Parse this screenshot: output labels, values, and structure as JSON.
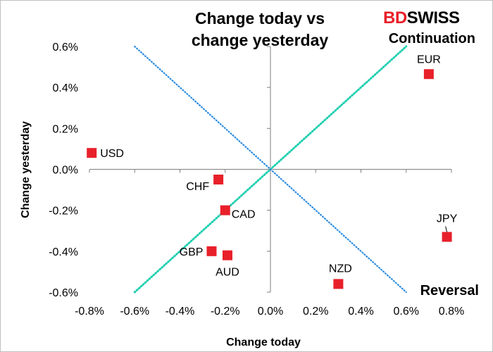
{
  "chart_data": {
    "type": "scatter",
    "title_line1": "Change today vs",
    "title_line2": "change yesterday",
    "xlabel": "Change today",
    "ylabel": "Change yesterday",
    "xlim": [
      -0.8,
      0.8
    ],
    "ylim": [
      -0.6,
      0.6
    ],
    "xticks": [
      -0.8,
      -0.6,
      -0.4,
      -0.2,
      0.0,
      0.2,
      0.4,
      0.6,
      0.8
    ],
    "xtick_labels": [
      "-0.8%",
      "-0.6%",
      "-0.4%",
      "-0.2%",
      "0.0%",
      "0.2%",
      "0.4%",
      "0.6%",
      "0.8%"
    ],
    "yticks": [
      0.6,
      0.4,
      0.2,
      0.0,
      -0.2,
      -0.4,
      -0.6
    ],
    "ytick_labels": [
      "0.6%",
      "0.4%",
      "0.2%",
      "0.0%",
      "-0.2%",
      "-0.4%",
      "-0.6%"
    ],
    "marker_color": "#e8202a",
    "continuation_color": "#1fcfb0",
    "reversal_color": "#2a8ae0",
    "continuation_label": "Continuation",
    "reversal_label": "Reversal",
    "continuation_line": [
      [
        -0.6,
        -0.6
      ],
      [
        0.6,
        0.6
      ]
    ],
    "reversal_line": [
      [
        -0.6,
        0.6
      ],
      [
        0.6,
        -0.6
      ]
    ],
    "points": [
      {
        "label": "USD",
        "x": -0.79,
        "y": 0.08
      },
      {
        "label": "EUR",
        "x": 0.7,
        "y": 0.465
      },
      {
        "label": "CHF",
        "x": -0.23,
        "y": -0.05
      },
      {
        "label": "CAD",
        "x": -0.2,
        "y": -0.2
      },
      {
        "label": "GBP",
        "x": -0.26,
        "y": -0.4
      },
      {
        "label": "AUD",
        "x": -0.19,
        "y": -0.42
      },
      {
        "label": "NZD",
        "x": 0.3,
        "y": -0.56
      },
      {
        "label": "JPY",
        "x": 0.78,
        "y": -0.33
      }
    ]
  },
  "brand": {
    "part1": "BD",
    "part2": "SWISS",
    "part1_color": "#e8202a",
    "part2_color": "#000000"
  }
}
